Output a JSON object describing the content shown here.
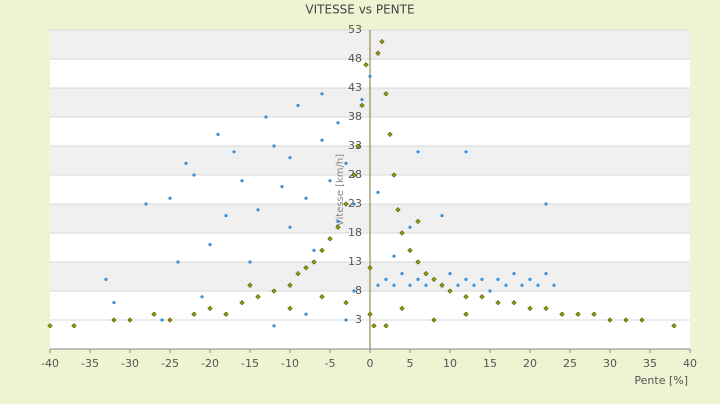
{
  "chart_data": {
    "type": "scatter",
    "title": "VITESSE vs PENTE",
    "xlabel": "Pente [%]",
    "ylabel": "Vitesse [km/h]",
    "xlim": [
      -40,
      40
    ],
    "xticks": [
      -40,
      -35,
      -30,
      -25,
      -20,
      -15,
      -10,
      -5,
      0,
      5,
      10,
      15,
      20,
      25,
      30,
      35,
      40
    ],
    "ylim": [
      -2,
      53
    ],
    "yticks": [
      3,
      8,
      13,
      18,
      23,
      28,
      33,
      38,
      43,
      48,
      53
    ],
    "grid": true,
    "series": [
      {
        "color": "#3a8fd8",
        "marker": "dot",
        "x": [
          -33,
          -32,
          -28,
          -25,
          -24,
          -23,
          -22,
          -20,
          -19,
          -18,
          -17,
          -16,
          -15,
          -14,
          -13,
          -12,
          -11,
          -10,
          -10,
          -9,
          -8,
          -7,
          -6,
          -6,
          -5,
          -4,
          -4,
          -3,
          -2,
          -1,
          0,
          1,
          1,
          2,
          3,
          4,
          5,
          6,
          7,
          8,
          9,
          10,
          11,
          12,
          13,
          14,
          15,
          16,
          17,
          18,
          19,
          20,
          21,
          22,
          23,
          6,
          12,
          22,
          9,
          -8,
          -12,
          -3,
          3,
          5,
          -2,
          -18,
          -21,
          -26
        ],
        "values": [
          10,
          6,
          23,
          24,
          13,
          30,
          28,
          16,
          35,
          21,
          32,
          27,
          13,
          22,
          38,
          33,
          26,
          19,
          31,
          40,
          24,
          15,
          42,
          34,
          27,
          37,
          20,
          30,
          23,
          41,
          45,
          25,
          9,
          10,
          9,
          11,
          9,
          10,
          9,
          10,
          9,
          11,
          9,
          10,
          9,
          10,
          8,
          10,
          9,
          11,
          9,
          10,
          9,
          11,
          9,
          32,
          32,
          23,
          21,
          4,
          2,
          3,
          14,
          19,
          8,
          4,
          7,
          3
        ]
      },
      {
        "color": "#a3a300",
        "marker": "diamond",
        "x": [
          -40,
          -37,
          -32,
          -30,
          -27,
          -25,
          -22,
          -20,
          -18,
          -16,
          -14,
          -12,
          -10,
          -9,
          -8,
          -7,
          -6,
          -5,
          -4,
          -3,
          -2,
          -1.5,
          -1,
          -0.5,
          0,
          0.5,
          1,
          1.5,
          2,
          2.5,
          3,
          3.5,
          4,
          5,
          6,
          7,
          8,
          9,
          10,
          12,
          14,
          16,
          18,
          20,
          22,
          24,
          26,
          28,
          30,
          32,
          34,
          38,
          -6,
          -10,
          4,
          8,
          12,
          -15,
          6,
          2,
          -3,
          0
        ],
        "values": [
          2,
          2,
          3,
          3,
          4,
          3,
          4,
          5,
          4,
          6,
          7,
          8,
          9,
          11,
          12,
          13,
          15,
          17,
          19,
          23,
          28,
          33,
          40,
          47,
          4,
          2,
          49,
          51,
          42,
          35,
          28,
          22,
          18,
          15,
          13,
          11,
          10,
          9,
          8,
          7,
          7,
          6,
          6,
          5,
          5,
          4,
          4,
          4,
          3,
          3,
          3,
          2,
          7,
          5,
          5,
          3,
          4,
          9,
          20,
          2,
          6,
          12
        ]
      }
    ]
  }
}
